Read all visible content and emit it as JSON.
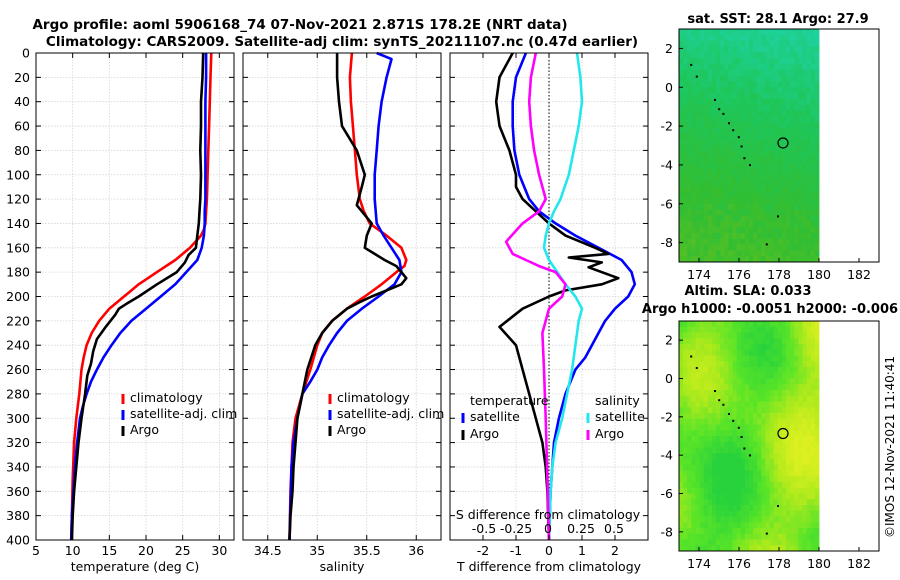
{
  "titles": {
    "line1": "Argo profile: aoml 5906168_74 07-Nov-2021 2.871S 178.2E (NRT data)",
    "line2": "Climatology: CARS2009. Satellite-adj clim: synTS_20211107.nc (0.47d earlier)",
    "sst": "sat. SST: 28.1 Argo: 27.9",
    "sla1": "Altim. SLA: 0.033",
    "sla2": "Argo h1000: -0.0051 h2000: -0.006",
    "stamp": "©IMOS 12-Nov-2021 11:40:41"
  },
  "colors": {
    "climatology": "#ff0000",
    "satellite": "#0000ff",
    "argo": "#000000",
    "sat_salinity": "#22e8ee",
    "argo_salinity": "#ff00ff"
  },
  "chart_data": [
    {
      "type": "line",
      "id": "temperature",
      "xlabel": "temperature (deg C)",
      "ylabel": "",
      "xlim": [
        5,
        32
      ],
      "ylim": [
        400,
        0
      ],
      "xticks": [
        5,
        10,
        15,
        20,
        25,
        30
      ],
      "yticks": [
        0,
        20,
        40,
        60,
        80,
        100,
        120,
        140,
        160,
        180,
        200,
        220,
        240,
        260,
        280,
        300,
        320,
        340,
        360,
        380,
        400
      ],
      "legend": [
        "climatology",
        "satellite-adj. clim",
        "Argo"
      ],
      "series": [
        {
          "name": "climatology",
          "color": "#ff0000",
          "x": [
            28.9,
            28.8,
            28.7,
            28.6,
            28.5,
            28.4,
            28.3,
            28.2,
            28.1,
            27.9,
            27.5,
            26,
            24,
            21.5,
            19,
            17,
            15,
            13.6,
            12.6,
            11.9,
            11.5,
            11.2,
            10.9,
            10.5,
            10.2,
            10,
            9.9,
            9.8
          ],
          "y": [
            0,
            20,
            40,
            60,
            80,
            100,
            120,
            130,
            140,
            145,
            150,
            160,
            170,
            180,
            190,
            200,
            210,
            220,
            230,
            240,
            250,
            260,
            280,
            300,
            320,
            350,
            380,
            400
          ]
        },
        {
          "name": "satellite-adj. clim",
          "color": "#0000ff",
          "x": [
            28.2,
            28.2,
            28.1,
            28.1,
            28.1,
            28.1,
            28.1,
            28,
            28,
            27.9,
            27.6,
            27,
            25.5,
            24,
            22,
            20,
            18,
            16.5,
            15.3,
            14.2,
            13.3,
            12.5,
            11.9,
            11.4,
            11,
            10.6,
            10.3,
            10.1,
            9.9,
            9.8
          ],
          "y": [
            0,
            20,
            40,
            60,
            80,
            100,
            120,
            130,
            140,
            150,
            160,
            170,
            180,
            190,
            200,
            210,
            220,
            230,
            240,
            250,
            260,
            270,
            280,
            290,
            300,
            320,
            340,
            360,
            380,
            400
          ]
        },
        {
          "name": "Argo",
          "color": "#000000",
          "x": [
            27.8,
            27.7,
            27.5,
            27.5,
            27.4,
            27.5,
            27.4,
            27.3,
            27.2,
            27,
            26.8,
            25.8,
            25.3,
            24.2,
            21.5,
            19,
            17.6,
            16.3,
            15.8,
            14.5,
            13.3,
            12.8,
            12.5,
            12,
            11.7,
            11.2,
            10.8,
            10.5,
            10.2,
            10,
            9.9
          ],
          "y": [
            0,
            20,
            40,
            60,
            80,
            100,
            120,
            130,
            140,
            150,
            160,
            166,
            172,
            180,
            190,
            200,
            205,
            210,
            215,
            225,
            235,
            245,
            255,
            265,
            280,
            300,
            320,
            340,
            360,
            380,
            400
          ]
        }
      ]
    },
    {
      "type": "line",
      "id": "salinity",
      "xlabel": "salinity",
      "ylabel": "",
      "xlim": [
        34.25,
        36.25
      ],
      "ylim": [
        400,
        0
      ],
      "xticks": [
        34.5,
        35,
        35.5,
        36
      ],
      "legend": [
        "climatology",
        "satellite-adj. clim",
        "Argo"
      ],
      "series": [
        {
          "name": "climatology",
          "color": "#ff0000",
          "x": [
            35.35,
            35.33,
            35.34,
            35.36,
            35.38,
            35.4,
            35.43,
            35.47,
            35.53,
            35.7,
            35.85,
            35.9,
            35.88,
            35.8,
            35.65,
            35.48,
            35.3,
            35.15,
            35.05,
            35,
            34.93,
            34.85,
            34.78,
            34.75,
            34.73,
            34.72
          ],
          "y": [
            0,
            20,
            40,
            60,
            80,
            100,
            120,
            130,
            140,
            150,
            160,
            170,
            175,
            180,
            190,
            200,
            210,
            220,
            230,
            240,
            260,
            280,
            300,
            320,
            360,
            400
          ]
        },
        {
          "name": "satellite-adj. clim",
          "color": "#0000ff",
          "x": [
            35.6,
            35.75,
            35.7,
            35.65,
            35.62,
            35.6,
            35.58,
            35.58,
            35.6,
            35.67,
            35.75,
            35.83,
            35.85,
            35.78,
            35.62,
            35.45,
            35.3,
            35.2,
            35.12,
            35.05,
            35,
            34.93,
            34.85,
            34.8,
            34.76,
            34.74,
            34.73,
            34.72
          ],
          "y": [
            0,
            5,
            20,
            40,
            60,
            80,
            100,
            120,
            140,
            150,
            160,
            170,
            180,
            190,
            200,
            210,
            220,
            230,
            240,
            250,
            260,
            270,
            280,
            300,
            320,
            340,
            370,
            400
          ]
        },
        {
          "name": "Argo",
          "color": "#000000",
          "x": [
            35.2,
            35.2,
            35.22,
            35.25,
            35.4,
            35.48,
            35.45,
            35.4,
            35.55,
            35.5,
            35.48,
            35.58,
            35.68,
            35.8,
            35.9,
            35.85,
            35.7,
            35.55,
            35.42,
            35.3,
            35.15,
            35.05,
            34.98,
            34.9,
            34.85,
            34.8,
            34.78,
            34.76,
            34.75,
            34.73,
            34.72
          ],
          "y": [
            0,
            20,
            40,
            60,
            80,
            100,
            110,
            125,
            140,
            150,
            160,
            165,
            170,
            175,
            185,
            190,
            195,
            200,
            205,
            210,
            220,
            230,
            240,
            260,
            280,
            300,
            320,
            340,
            360,
            380,
            400
          ]
        }
      ]
    },
    {
      "type": "line",
      "id": "difference",
      "xlabel": "T difference from climatology",
      "ylabel": "",
      "xlim": [
        -3,
        3
      ],
      "ylim": [
        400,
        0
      ],
      "xticks": [
        -2,
        -1,
        0,
        1,
        2
      ],
      "top_axis_label": "S difference from climatology",
      "top_ticks": [
        "-0.5",
        "-0.25",
        "0",
        "0.25",
        "0.5"
      ],
      "legend_groups": [
        {
          "title": "temperature",
          "items": [
            "satellite",
            "Argo"
          ]
        },
        {
          "title": "salinity",
          "items": [
            "satellite",
            "Argo"
          ]
        }
      ],
      "series": [
        {
          "name": "temperature satellite",
          "color": "#0000ff",
          "x": [
            -0.7,
            -1,
            -1.1,
            -1.1,
            -1.05,
            -0.9,
            -0.6,
            -0.3,
            0.2,
            0.8,
            1.5,
            2.2,
            2.5,
            2.6,
            2.4,
            2,
            1.7,
            1.5,
            1.3,
            1.1,
            0.8,
            0.5,
            0.3,
            0.15,
            0.05,
            0
          ],
          "y": [
            0,
            20,
            40,
            60,
            80,
            100,
            120,
            130,
            140,
            150,
            160,
            170,
            180,
            190,
            200,
            210,
            220,
            230,
            240,
            250,
            260,
            280,
            300,
            320,
            360,
            400
          ]
        },
        {
          "name": "temperature Argo",
          "color": "#000000",
          "x": [
            -1.1,
            -1.5,
            -1.6,
            -1.5,
            -1.2,
            -1,
            -1,
            -0.8,
            -0.4,
            0,
            0.5,
            1.4,
            1.8,
            0.6,
            1.6,
            1.2,
            2.1,
            1.6,
            0.5,
            0,
            -0.8,
            -1.5,
            -1,
            -0.8,
            -0.6,
            -0.4,
            -0.2,
            -0.1,
            -0.05,
            0
          ],
          "y": [
            0,
            20,
            40,
            60,
            80,
            100,
            110,
            120,
            130,
            140,
            150,
            160,
            165,
            168,
            172,
            176,
            185,
            190,
            195,
            200,
            210,
            225,
            240,
            260,
            280,
            300,
            320,
            340,
            360,
            400
          ]
        },
        {
          "name": "salinity satellite",
          "color": "#22e8ee",
          "x": [
            0.85,
            0.95,
            1,
            0.9,
            0.75,
            0.6,
            0.35,
            0.15,
            0,
            -0.1,
            -0.15,
            0,
            0.5,
            0.8,
            1,
            0.9,
            0.8,
            0.7,
            0.55,
            0.4,
            0.2,
            0.1,
            0.05,
            0
          ],
          "y": [
            0,
            20,
            40,
            60,
            80,
            100,
            120,
            130,
            140,
            150,
            160,
            170,
            190,
            200,
            210,
            220,
            240,
            260,
            280,
            300,
            320,
            340,
            360,
            400
          ]
        },
        {
          "name": "salinity Argo",
          "color": "#ff00ff",
          "x": [
            -0.4,
            -0.55,
            -0.6,
            -0.55,
            -0.45,
            -0.3,
            -0.2,
            -0.1,
            -0.3,
            -0.8,
            -1.3,
            -1.1,
            -0.7,
            -0.3,
            0.2,
            0.5,
            0.4,
            0,
            -0.2,
            -0.15,
            -0.1,
            -0.05,
            0
          ],
          "y": [
            0,
            20,
            40,
            60,
            80,
            100,
            110,
            120,
            130,
            140,
            155,
            165,
            170,
            175,
            180,
            190,
            200,
            210,
            230,
            260,
            300,
            350,
            400
          ]
        }
      ]
    },
    {
      "type": "heatmap",
      "id": "sst-map",
      "title": "sat. SST: 28.1 Argo: 27.9",
      "xlim": [
        173,
        183
      ],
      "ylim": [
        -9,
        3
      ],
      "xticks": [
        "174",
        "176",
        "178",
        "180",
        "182"
      ],
      "yticks": [
        "2",
        "0",
        "-2",
        "-4",
        "-6",
        "-8"
      ],
      "data_lon_max": 180,
      "marker": {
        "lon": 178.2,
        "lat": -2.87
      },
      "colors": [
        "#1ed2a0",
        "#1ec65a",
        "#32be32",
        "#52c026"
      ]
    },
    {
      "type": "heatmap",
      "id": "sla-map",
      "title": "Altim. SLA: 0.033",
      "xlim": [
        173,
        183
      ],
      "ylim": [
        -9,
        3
      ],
      "xticks": [
        "174",
        "176",
        "178",
        "180",
        "182"
      ],
      "yticks": [
        "2",
        "0",
        "-2",
        "-4",
        "-6",
        "-8"
      ],
      "data_lon_max": 180,
      "marker": {
        "lon": 178.2,
        "lat": -2.87
      },
      "colors": [
        "#28d23c",
        "#58e428",
        "#aeea1c",
        "#dcf020"
      ]
    }
  ]
}
